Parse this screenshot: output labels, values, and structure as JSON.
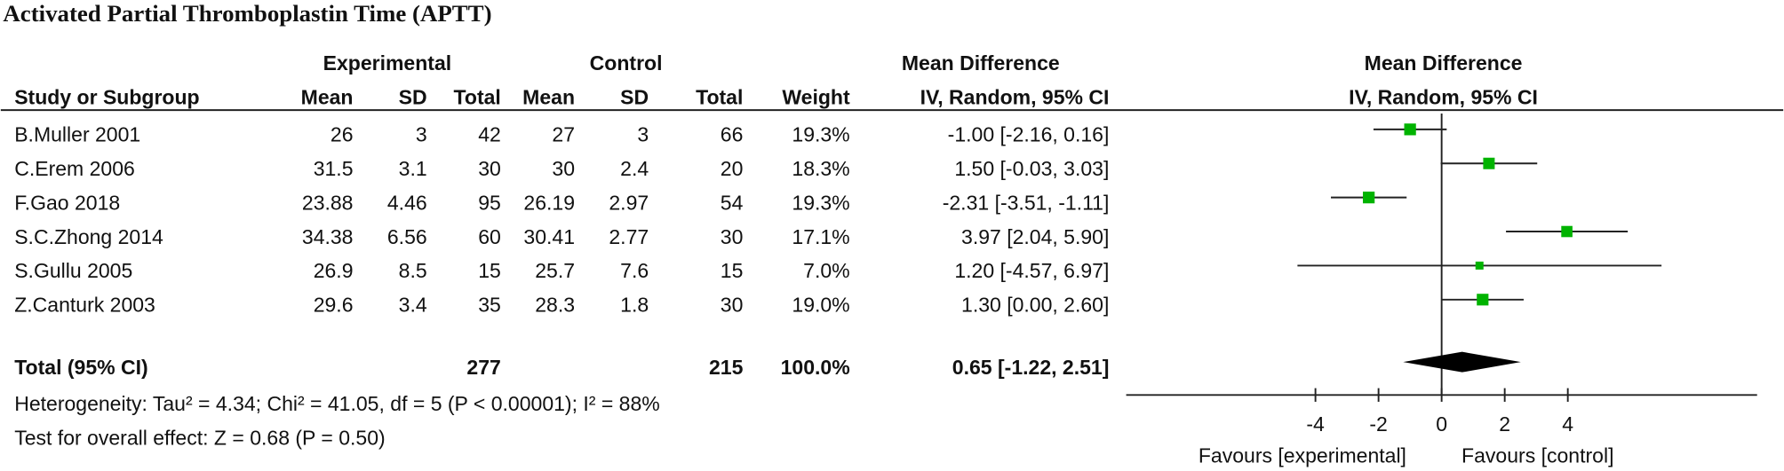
{
  "chart_data": {
    "type": "forest",
    "title": "Activated Partial Thromboplastin Time (APTT)",
    "group_headers": {
      "experimental": "Experimental",
      "control": "Control",
      "effect": "Mean Difference",
      "plot": "Mean Difference"
    },
    "columns": [
      "Study or Subgroup",
      "Mean",
      "SD",
      "Total",
      "Mean",
      "SD",
      "Total",
      "Weight",
      "IV, Random, 95% CI"
    ],
    "plot_subheader": "IV, Random, 95% CI",
    "studies": [
      {
        "name": "B.Muller 2001",
        "exp_mean": 26,
        "exp_sd": 3,
        "exp_total": 42,
        "ctl_mean": 27,
        "ctl_sd": 3,
        "ctl_total": 66,
        "weight": 19.3,
        "weight_label": "19.3%",
        "md": -1.0,
        "lower": -2.16,
        "upper": 0.16,
        "ci_label": "-1.00 [-2.16, 0.16]"
      },
      {
        "name": "C.Erem 2006",
        "exp_mean": 31.5,
        "exp_sd": 3.1,
        "exp_total": 30,
        "ctl_mean": 30,
        "ctl_sd": 2.4,
        "ctl_total": 20,
        "weight": 18.3,
        "weight_label": "18.3%",
        "md": 1.5,
        "lower": -0.03,
        "upper": 3.03,
        "ci_label": "1.50 [-0.03, 3.03]"
      },
      {
        "name": "F.Gao 2018",
        "exp_mean": 23.88,
        "exp_sd": 4.46,
        "exp_total": 95,
        "ctl_mean": 26.19,
        "ctl_sd": 2.97,
        "ctl_total": 54,
        "weight": 19.3,
        "weight_label": "19.3%",
        "md": -2.31,
        "lower": -3.51,
        "upper": -1.11,
        "ci_label": "-2.31 [-3.51, -1.11]"
      },
      {
        "name": "S.C.Zhong 2014",
        "exp_mean": 34.38,
        "exp_sd": 6.56,
        "exp_total": 60,
        "ctl_mean": 30.41,
        "ctl_sd": 2.77,
        "ctl_total": 30,
        "weight": 17.1,
        "weight_label": "17.1%",
        "md": 3.97,
        "lower": 2.04,
        "upper": 5.9,
        "ci_label": "3.97 [2.04, 5.90]"
      },
      {
        "name": "S.Gullu 2005",
        "exp_mean": 26.9,
        "exp_sd": 8.5,
        "exp_total": 15,
        "ctl_mean": 25.7,
        "ctl_sd": 7.6,
        "ctl_total": 15,
        "weight": 7.0,
        "weight_label": "7.0%",
        "md": 1.2,
        "lower": -4.57,
        "upper": 6.97,
        "ci_label": "1.20 [-4.57, 6.97]"
      },
      {
        "name": "Z.Canturk 2003",
        "exp_mean": 29.6,
        "exp_sd": 3.4,
        "exp_total": 35,
        "ctl_mean": 28.3,
        "ctl_sd": 1.8,
        "ctl_total": 30,
        "weight": 19.0,
        "weight_label": "19.0%",
        "md": 1.3,
        "lower": 0.0,
        "upper": 2.6,
        "ci_label": "1.30 [0.00, 2.60]"
      }
    ],
    "total": {
      "name": "Total (95% CI)",
      "exp_total": 277,
      "ctl_total": 215,
      "weight": 100,
      "weight_label": "100.0%",
      "md": 0.65,
      "lower": -1.22,
      "upper": 2.51,
      "ci_label": "0.65 [-1.22, 2.51]"
    },
    "heterogeneity": "Heterogeneity: Tau² = 4.34; Chi² = 41.05, df = 5 (P < 0.00001); I² = 88%",
    "overall_effect": "Test for overall effect: Z = 0.68 (P = 0.50)",
    "xlim": [
      -10,
      10
    ],
    "xticks": [
      -4,
      -2,
      0,
      2,
      4
    ],
    "favours_left": "Favours [experimental]",
    "favours_right": "Favours [control]",
    "color": "#00b300"
  }
}
